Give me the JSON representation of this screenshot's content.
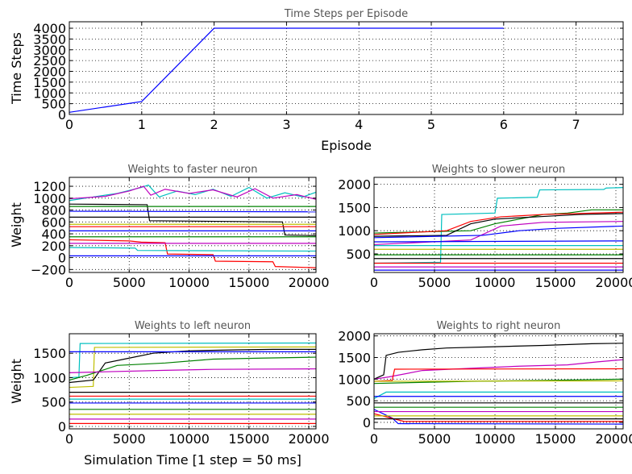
{
  "chart_data": [
    {
      "type": "line",
      "title": "Time Steps per Episode",
      "xlabel": "Episode",
      "ylabel": "Time Steps",
      "xlim": [
        0,
        7.65
      ],
      "ylim": [
        0,
        4300
      ],
      "xticks": [
        0,
        1,
        2,
        3,
        4,
        5,
        6,
        7
      ],
      "yticks": [
        0,
        500,
        1000,
        1500,
        2000,
        2500,
        3000,
        3500,
        4000
      ],
      "grid": true,
      "series": [
        {
          "color": "#0000ff",
          "x": [
            0,
            1,
            2,
            3,
            4,
            5,
            6
          ],
          "y": [
            100,
            600,
            4000,
            4000,
            4000,
            4000,
            4000
          ]
        }
      ]
    },
    {
      "type": "line",
      "title": "Weights to faster neuron",
      "xlabel": "",
      "ylabel": "Weight",
      "xlim": [
        0,
        20600
      ],
      "ylim": [
        -250,
        1350
      ],
      "xticks": [
        0,
        5000,
        10000,
        15000,
        20000
      ],
      "yticks": [
        -200,
        0,
        200,
        400,
        600,
        800,
        1000,
        1200
      ],
      "grid": true,
      "series": [
        {
          "color": "#00bfbf",
          "x": [
            0,
            2000,
            4000,
            6000,
            6600,
            7500,
            9000,
            10500,
            12000,
            13500,
            15000,
            16500,
            18000,
            19500,
            20600
          ],
          "y": [
            960,
            1020,
            1080,
            1180,
            1220,
            1020,
            1120,
            1060,
            1150,
            1030,
            1180,
            1000,
            1090,
            1020,
            1100
          ]
        },
        {
          "color": "#bf00bf",
          "x": [
            0,
            3000,
            5000,
            6200,
            6800,
            8000,
            10000,
            12000,
            14000,
            15500,
            17000,
            19000,
            20600
          ],
          "y": [
            990,
            1030,
            1120,
            1200,
            1050,
            1150,
            1080,
            1140,
            1020,
            1160,
            1000,
            1060,
            980
          ]
        },
        {
          "color": "#ff0000",
          "x": [
            0,
            5000,
            6000,
            8000,
            8200,
            12000,
            12200,
            17000,
            17200,
            20600
          ],
          "y": [
            300,
            280,
            260,
            250,
            60,
            50,
            -60,
            -70,
            -150,
            -170
          ]
        },
        {
          "color": "#000000",
          "x": [
            0,
            6500,
            6700,
            17800,
            18000,
            20600
          ],
          "y": [
            900,
            890,
            620,
            600,
            380,
            370
          ]
        },
        {
          "color": "#008000",
          "x": [
            0,
            20600
          ],
          "y": [
            860,
            860
          ]
        },
        {
          "color": "#0000ff",
          "x": [
            0,
            20600
          ],
          "y": [
            780,
            770
          ]
        },
        {
          "color": "#bfbf00",
          "x": [
            0,
            20600
          ],
          "y": [
            560,
            560
          ]
        },
        {
          "color": "#0000ff",
          "x": [
            0,
            20600
          ],
          "y": [
            450,
            450
          ]
        },
        {
          "color": "#008000",
          "x": [
            0,
            20600
          ],
          "y": [
            350,
            350
          ]
        },
        {
          "color": "#bf00bf",
          "x": [
            0,
            20600
          ],
          "y": [
            240,
            240
          ]
        },
        {
          "color": "#00bfbf",
          "x": [
            0,
            5500,
            5700,
            20600
          ],
          "y": [
            170,
            160,
            120,
            110
          ]
        },
        {
          "color": "#000000",
          "x": [
            0,
            20600
          ],
          "y": [
            680,
            680
          ]
        },
        {
          "color": "#ff0000",
          "x": [
            0,
            20600
          ],
          "y": [
            520,
            520
          ]
        },
        {
          "color": "#0000ff",
          "x": [
            0,
            20600
          ],
          "y": [
            30,
            30
          ]
        }
      ]
    },
    {
      "type": "line",
      "title": "Weights to slower neuron",
      "xlabel": "",
      "ylabel": "",
      "xlim": [
        0,
        20600
      ],
      "ylim": [
        100,
        2150
      ],
      "xticks": [
        0,
        5000,
        10000,
        15000,
        20000
      ],
      "yticks": [
        500,
        1000,
        1500,
        2000
      ],
      "grid": true,
      "series": [
        {
          "color": "#00bfbf",
          "x": [
            0,
            5500,
            5600,
            10000,
            10200,
            13500,
            13700,
            19000,
            19200,
            20600
          ],
          "y": [
            300,
            320,
            1350,
            1380,
            1700,
            1720,
            1880,
            1890,
            1920,
            1930
          ]
        },
        {
          "color": "#008000",
          "x": [
            0,
            8000,
            10000,
            12000,
            14000,
            16000,
            18000,
            20600
          ],
          "y": [
            950,
            1000,
            1150,
            1250,
            1350,
            1380,
            1450,
            1450
          ]
        },
        {
          "color": "#ff0000",
          "x": [
            0,
            6000,
            8000,
            10500,
            12000,
            14000,
            17000,
            20600
          ],
          "y": [
            920,
            1000,
            1200,
            1300,
            1320,
            1350,
            1370,
            1400
          ]
        },
        {
          "color": "#000000",
          "x": [
            0,
            6000,
            8000,
            10000,
            13500,
            17000,
            20600
          ],
          "y": [
            880,
            900,
            1150,
            1250,
            1300,
            1350,
            1370
          ]
        },
        {
          "color": "#bf00bf",
          "x": [
            0,
            8000,
            10500,
            14000,
            20600
          ],
          "y": [
            700,
            800,
            1100,
            1180,
            1200
          ]
        },
        {
          "color": "#0000ff",
          "x": [
            0,
            9000,
            12000,
            15000,
            20600
          ],
          "y": [
            850,
            900,
            1000,
            1050,
            1100
          ]
        },
        {
          "color": "#bfbf00",
          "x": [
            0,
            20600
          ],
          "y": [
            600,
            600
          ]
        },
        {
          "color": "#0000ff",
          "x": [
            0,
            20600
          ],
          "y": [
            760,
            780
          ]
        },
        {
          "color": "#008000",
          "x": [
            0,
            20600
          ],
          "y": [
            480,
            480
          ]
        },
        {
          "color": "#000000",
          "x": [
            0,
            20600
          ],
          "y": [
            400,
            400
          ]
        },
        {
          "color": "#ff0000",
          "x": [
            0,
            20600
          ],
          "y": [
            300,
            300
          ]
        },
        {
          "color": "#bf00bf",
          "x": [
            0,
            20600
          ],
          "y": [
            220,
            220
          ]
        },
        {
          "color": "#00bfbf",
          "x": [
            0,
            20600
          ],
          "y": [
            680,
            680
          ]
        },
        {
          "color": "#0000ff",
          "x": [
            0,
            20600
          ],
          "y": [
            150,
            150
          ]
        }
      ]
    },
    {
      "type": "line",
      "title": "Weights to left neuron",
      "xlabel": "Simulation Time [1 step = 50 ms]",
      "ylabel": "Weight",
      "xlim": [
        0,
        20600
      ],
      "ylim": [
        -50,
        1900
      ],
      "xticks": [
        0,
        5000,
        10000,
        15000,
        20000
      ],
      "yticks": [
        0,
        500,
        1000,
        1500
      ],
      "grid": true,
      "series": [
        {
          "color": "#00bfbf",
          "x": [
            0,
            800,
            900,
            20600
          ],
          "y": [
            1000,
            1010,
            1700,
            1710
          ]
        },
        {
          "color": "#bfbf00",
          "x": [
            0,
            2000,
            2100,
            20600
          ],
          "y": [
            800,
            820,
            1620,
            1630
          ]
        },
        {
          "color": "#000000",
          "x": [
            0,
            2000,
            3000,
            5000,
            7000,
            10000,
            14000,
            17000,
            20600
          ],
          "y": [
            900,
            950,
            1300,
            1400,
            1500,
            1550,
            1570,
            1580,
            1580
          ]
        },
        {
          "color": "#0000ff",
          "x": [
            0,
            20600
          ],
          "y": [
            1530,
            1530
          ]
        },
        {
          "color": "#008000",
          "x": [
            0,
            1500,
            4000,
            8000,
            12000,
            16000,
            20600
          ],
          "y": [
            950,
            1050,
            1250,
            1300,
            1380,
            1400,
            1420
          ]
        },
        {
          "color": "#bf00bf",
          "x": [
            0,
            3000,
            8000,
            12000,
            20600
          ],
          "y": [
            1100,
            1120,
            1150,
            1170,
            1180
          ]
        },
        {
          "color": "#ff0000",
          "x": [
            0,
            20600
          ],
          "y": [
            620,
            620
          ]
        },
        {
          "color": "#000000",
          "x": [
            0,
            20600
          ],
          "y": [
            700,
            700
          ]
        },
        {
          "color": "#0000ff",
          "x": [
            0,
            20600
          ],
          "y": [
            480,
            480
          ]
        },
        {
          "color": "#008000",
          "x": [
            0,
            20600
          ],
          "y": [
            350,
            350
          ]
        },
        {
          "color": "#bfbf00",
          "x": [
            0,
            20600
          ],
          "y": [
            250,
            250
          ]
        },
        {
          "color": "#bf00bf",
          "x": [
            0,
            20600
          ],
          "y": [
            150,
            150
          ]
        },
        {
          "color": "#00bfbf",
          "x": [
            0,
            20600
          ],
          "y": [
            560,
            560
          ]
        },
        {
          "color": "#ff0000",
          "x": [
            0,
            20600
          ],
          "y": [
            60,
            60
          ]
        }
      ]
    },
    {
      "type": "line",
      "title": "Weights to right neuron",
      "xlabel": "",
      "ylabel": "",
      "xlim": [
        0,
        20600
      ],
      "ylim": [
        -150,
        2050
      ],
      "xticks": [
        0,
        5000,
        10000,
        15000,
        20000
      ],
      "yticks": [
        0,
        500,
        1000,
        1500,
        2000
      ],
      "grid": true,
      "series": [
        {
          "color": "#000000",
          "x": [
            0,
            800,
            1000,
            2000,
            4000,
            6000,
            10000,
            14000,
            18000,
            20600
          ],
          "y": [
            1000,
            1100,
            1550,
            1620,
            1680,
            1720,
            1750,
            1780,
            1820,
            1830
          ]
        },
        {
          "color": "#bf00bf",
          "x": [
            0,
            1200,
            4000,
            8000,
            12000,
            16000,
            18500,
            20600
          ],
          "y": [
            1000,
            1050,
            1200,
            1250,
            1300,
            1330,
            1400,
            1450
          ]
        },
        {
          "color": "#ff0000",
          "x": [
            0,
            1500,
            1700,
            20600
          ],
          "y": [
            950,
            970,
            1230,
            1240
          ]
        },
        {
          "color": "#008000",
          "x": [
            0,
            3000,
            8000,
            14000,
            20600
          ],
          "y": [
            900,
            920,
            950,
            970,
            1000
          ]
        },
        {
          "color": "#bfbf00",
          "x": [
            0,
            20600
          ],
          "y": [
            950,
            960
          ]
        },
        {
          "color": "#00bfbf",
          "x": [
            0,
            1000,
            20600
          ],
          "y": [
            550,
            700,
            700
          ]
        },
        {
          "color": "#0000ff",
          "x": [
            0,
            1500,
            2000,
            20600
          ],
          "y": [
            300,
            100,
            -30,
            -40
          ]
        },
        {
          "color": "#ff0000",
          "x": [
            0,
            2500,
            20600
          ],
          "y": [
            200,
            20,
            20
          ]
        },
        {
          "color": "#000000",
          "x": [
            0,
            20600
          ],
          "y": [
            450,
            450
          ]
        },
        {
          "color": "#008000",
          "x": [
            0,
            20600
          ],
          "y": [
            350,
            350
          ]
        },
        {
          "color": "#bf00bf",
          "x": [
            0,
            20600
          ],
          "y": [
            250,
            250
          ]
        },
        {
          "color": "#0000ff",
          "x": [
            0,
            20600
          ],
          "y": [
            600,
            600
          ]
        },
        {
          "color": "#bfbf00",
          "x": [
            0,
            20600
          ],
          "y": [
            150,
            150
          ]
        },
        {
          "color": "#000000",
          "x": [
            0,
            20600
          ],
          "y": [
            80,
            80
          ]
        }
      ]
    }
  ]
}
